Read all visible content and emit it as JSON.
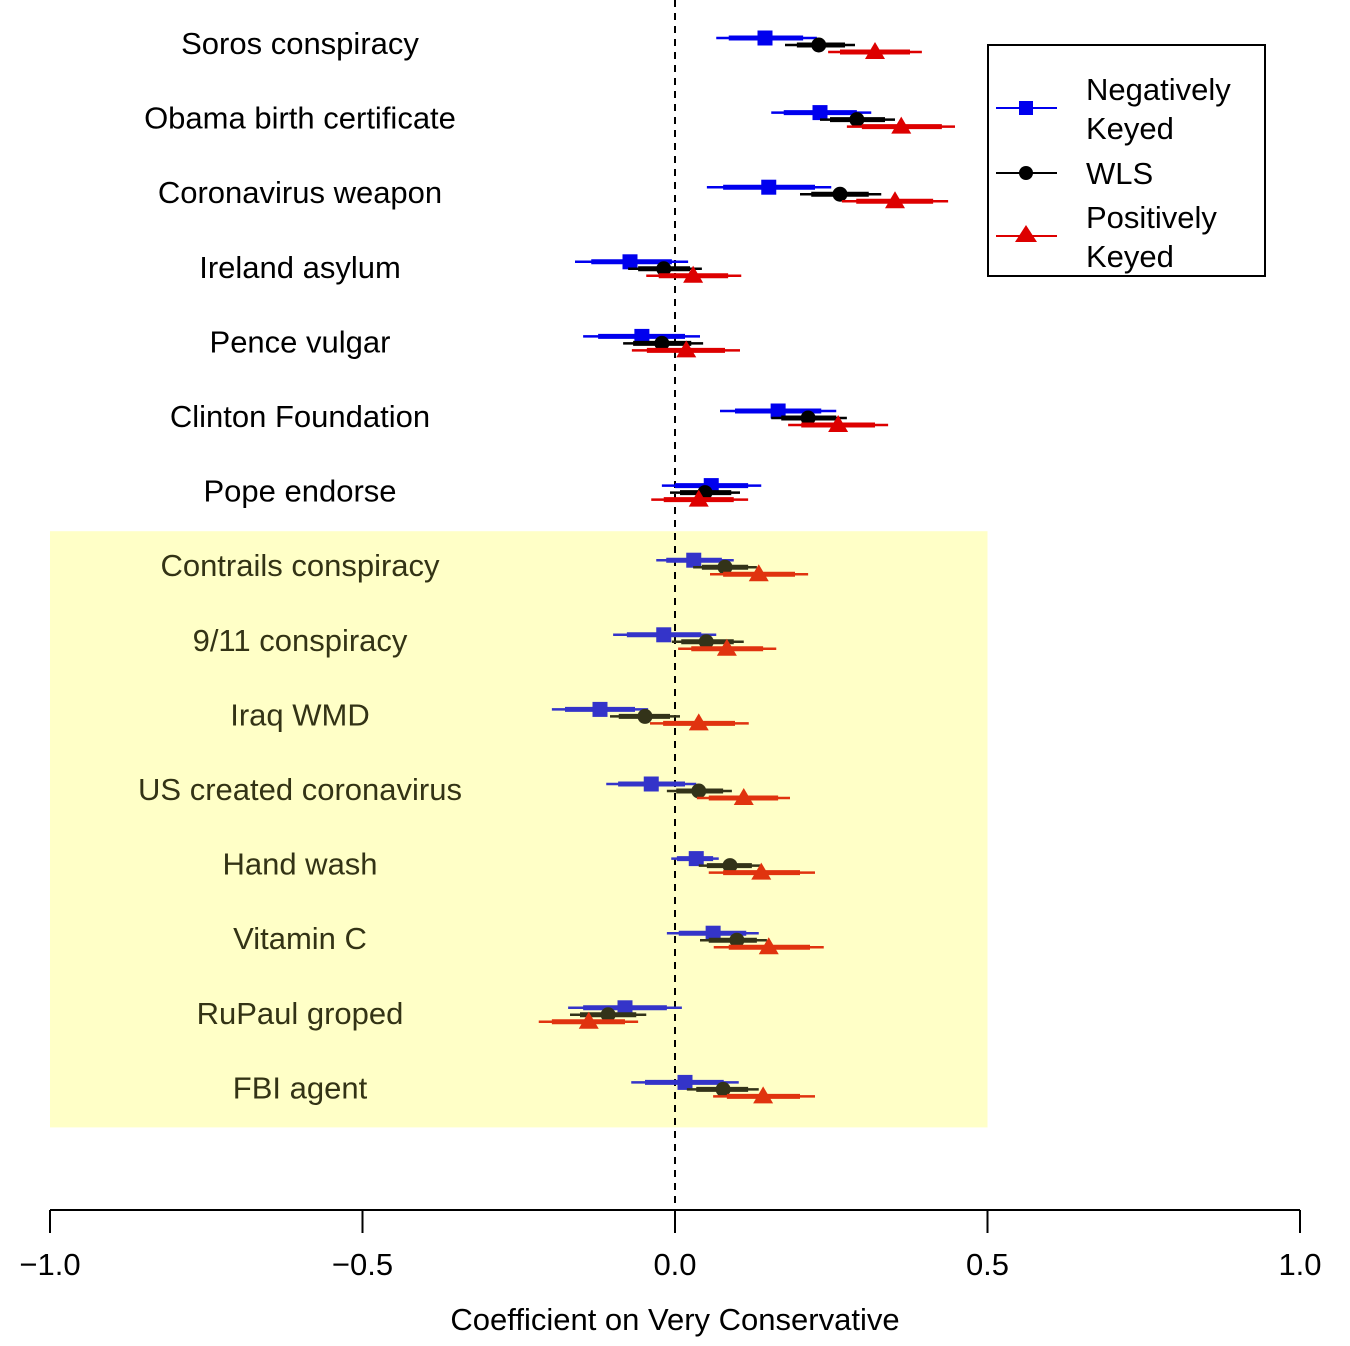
{
  "chart_data": {
    "type": "scatter",
    "subtype": "coefficient-plot",
    "title": "",
    "xlabel": "Coefficient on Very Conservative",
    "ylabel": "",
    "xlim": [
      -1.0,
      1.0
    ],
    "x_ticks": [
      -1.0,
      -0.5,
      0.0,
      0.5,
      1.0
    ],
    "x_tick_labels": [
      "−1.0",
      "−0.5",
      "0.0",
      "0.5",
      "1.0"
    ],
    "reference_line": 0.0,
    "grid": false,
    "legend_position": "top-right",
    "shaded_region": {
      "x_range": [
        -1.0,
        0.5
      ],
      "first_item": "Contrails conspiracy",
      "last_item": "FBI agent",
      "color": "#ffffd4"
    },
    "series": [
      {
        "name": "Negatively Keyed",
        "legend_label": [
          "Negatively",
          " Keyed"
        ],
        "color": "#0000ee",
        "marker": "square"
      },
      {
        "name": "WLS",
        "legend_label": [
          "WLS"
        ],
        "color": "#000000",
        "marker": "circle"
      },
      {
        "name": "Positively Keyed",
        "legend_label": [
          "Positively",
          " Keyed"
        ],
        "color": "#dd0000",
        "marker": "triangle"
      }
    ],
    "items": [
      {
        "label": "Soros conspiracy",
        "shaded": false,
        "est": [
          {
            "point": 0.144,
            "ci95": [
              0.066,
              0.227
            ],
            "ci_inner": [
              0.086,
              0.205
            ]
          },
          {
            "point": 0.23,
            "ci95": [
              0.176,
              0.288
            ],
            "ci_inner": [
              0.195,
              0.272
            ]
          },
          {
            "point": 0.32,
            "ci95": [
              0.245,
              0.395
            ],
            "ci_inner": [
              0.264,
              0.376
            ]
          }
        ]
      },
      {
        "label": "Obama birth certificate",
        "shaded": false,
        "est": [
          {
            "point": 0.232,
            "ci95": [
              0.154,
              0.314
            ],
            "ci_inner": [
              0.174,
              0.291
            ]
          },
          {
            "point": 0.291,
            "ci95": [
              0.232,
              0.352
            ],
            "ci_inner": [
              0.248,
              0.336
            ]
          },
          {
            "point": 0.362,
            "ci95": [
              0.275,
              0.448
            ],
            "ci_inner": [
              0.299,
              0.427
            ]
          }
        ]
      },
      {
        "label": "Coronavirus weapon",
        "shaded": false,
        "est": [
          {
            "point": 0.15,
            "ci95": [
              0.051,
              0.25
            ],
            "ci_inner": [
              0.077,
              0.224
            ]
          },
          {
            "point": 0.264,
            "ci95": [
              0.2,
              0.33
            ],
            "ci_inner": [
              0.218,
              0.31
            ]
          },
          {
            "point": 0.352,
            "ci95": [
              0.267,
              0.437
            ],
            "ci_inner": [
              0.29,
              0.413
            ]
          }
        ]
      },
      {
        "label": "Ireland asylum",
        "shaded": false,
        "est": [
          {
            "point": -0.072,
            "ci95": [
              -0.16,
              0.021
            ],
            "ci_inner": [
              -0.134,
              -0.005
            ]
          },
          {
            "point": -0.018,
            "ci95": [
              -0.075,
              0.043
            ],
            "ci_inner": [
              -0.059,
              0.024
            ]
          },
          {
            "point": 0.029,
            "ci95": [
              -0.046,
              0.106
            ],
            "ci_inner": [
              -0.026,
              0.085
            ]
          }
        ]
      },
      {
        "label": "Pence vulgar",
        "shaded": false,
        "est": [
          {
            "point": -0.053,
            "ci95": [
              -0.147,
              0.04
            ],
            "ci_inner": [
              -0.123,
              0.016
            ]
          },
          {
            "point": -0.021,
            "ci95": [
              -0.083,
              0.045
            ],
            "ci_inner": [
              -0.067,
              0.026
            ]
          },
          {
            "point": 0.018,
            "ci95": [
              -0.069,
              0.104
            ],
            "ci_inner": [
              -0.045,
              0.08
            ]
          }
        ]
      },
      {
        "label": "Clinton Foundation",
        "shaded": false,
        "est": [
          {
            "point": 0.165,
            "ci95": [
              0.072,
              0.258
            ],
            "ci_inner": [
              0.096,
              0.234
            ]
          },
          {
            "point": 0.213,
            "ci95": [
              0.154,
              0.275
            ],
            "ci_inner": [
              0.17,
              0.258
            ]
          },
          {
            "point": 0.261,
            "ci95": [
              0.181,
              0.341
            ],
            "ci_inner": [
              0.202,
              0.32
            ]
          }
        ]
      },
      {
        "label": "Pope endorse",
        "shaded": false,
        "est": [
          {
            "point": 0.058,
            "ci95": [
              -0.021,
              0.138
            ],
            "ci_inner": [
              0.0,
              0.117
            ]
          },
          {
            "point": 0.048,
            "ci95": [
              -0.008,
              0.104
            ],
            "ci_inner": [
              0.008,
              0.09
            ]
          },
          {
            "point": 0.038,
            "ci95": [
              -0.038,
              0.117
            ],
            "ci_inner": [
              -0.018,
              0.094
            ]
          }
        ]
      },
      {
        "label": "Contrails conspiracy",
        "shaded": true,
        "est": [
          {
            "point": 0.03,
            "ci95": [
              -0.03,
              0.094
            ],
            "ci_inner": [
              -0.014,
              0.075
            ]
          },
          {
            "point": 0.08,
            "ci95": [
              0.029,
              0.131
            ],
            "ci_inner": [
              0.043,
              0.117
            ]
          },
          {
            "point": 0.134,
            "ci95": [
              0.056,
              0.213
            ],
            "ci_inner": [
              0.077,
              0.192
            ]
          }
        ]
      },
      {
        "label": "9/11 conspiracy",
        "shaded": true,
        "est": [
          {
            "point": -0.018,
            "ci95": [
              -0.099,
              0.066
            ],
            "ci_inner": [
              -0.077,
              0.042
            ]
          },
          {
            "point": 0.05,
            "ci95": [
              -0.005,
              0.11
            ],
            "ci_inner": [
              0.01,
              0.094
            ]
          },
          {
            "point": 0.083,
            "ci95": [
              0.005,
              0.162
            ],
            "ci_inner": [
              0.026,
              0.141
            ]
          }
        ]
      },
      {
        "label": "Iraq WMD",
        "shaded": true,
        "est": [
          {
            "point": -0.12,
            "ci95": [
              -0.197,
              -0.043
            ],
            "ci_inner": [
              -0.176,
              -0.064
            ]
          },
          {
            "point": -0.048,
            "ci95": [
              -0.104,
              0.008
            ],
            "ci_inner": [
              -0.09,
              -0.008
            ]
          },
          {
            "point": 0.038,
            "ci95": [
              -0.04,
              0.118
            ],
            "ci_inner": [
              -0.019,
              0.096
            ]
          }
        ]
      },
      {
        "label": "US created coronavirus",
        "shaded": true,
        "est": [
          {
            "point": -0.038,
            "ci95": [
              -0.11,
              0.034
            ],
            "ci_inner": [
              -0.091,
              0.016
            ]
          },
          {
            "point": 0.038,
            "ci95": [
              -0.013,
              0.091
            ],
            "ci_inner": [
              0.002,
              0.077
            ]
          },
          {
            "point": 0.11,
            "ci95": [
              0.035,
              0.184
            ],
            "ci_inner": [
              0.054,
              0.165
            ]
          }
        ]
      },
      {
        "label": "Hand wash",
        "shaded": true,
        "est": [
          {
            "point": 0.034,
            "ci95": [
              -0.006,
              0.07
            ],
            "ci_inner": [
              0.003,
              0.061
            ]
          },
          {
            "point": 0.088,
            "ci95": [
              0.038,
              0.136
            ],
            "ci_inner": [
              0.051,
              0.123
            ]
          },
          {
            "point": 0.138,
            "ci95": [
              0.054,
              0.224
            ],
            "ci_inner": [
              0.077,
              0.2
            ]
          }
        ]
      },
      {
        "label": "Vitamin C",
        "shaded": true,
        "est": [
          {
            "point": 0.061,
            "ci95": [
              -0.013,
              0.134
            ],
            "ci_inner": [
              0.006,
              0.114
            ]
          },
          {
            "point": 0.099,
            "ci95": [
              0.04,
              0.147
            ],
            "ci_inner": [
              0.054,
              0.131
            ]
          },
          {
            "point": 0.15,
            "ci95": [
              0.062,
              0.238
            ],
            "ci_inner": [
              0.086,
              0.216
            ]
          }
        ]
      },
      {
        "label": "RuPaul groped",
        "shaded": true,
        "est": [
          {
            "point": -0.08,
            "ci95": [
              -0.171,
              0.011
            ],
            "ci_inner": [
              -0.147,
              -0.013
            ]
          },
          {
            "point": -0.107,
            "ci95": [
              -0.168,
              -0.046
            ],
            "ci_inner": [
              -0.152,
              -0.062
            ]
          },
          {
            "point": -0.138,
            "ci95": [
              -0.218,
              -0.059
            ],
            "ci_inner": [
              -0.197,
              -0.08
            ]
          }
        ]
      },
      {
        "label": "FBI agent",
        "shaded": true,
        "est": [
          {
            "point": 0.016,
            "ci95": [
              -0.07,
              0.102
            ],
            "ci_inner": [
              -0.048,
              0.078
            ]
          },
          {
            "point": 0.077,
            "ci95": [
              0.019,
              0.134
            ],
            "ci_inner": [
              0.034,
              0.117
            ]
          },
          {
            "point": 0.141,
            "ci95": [
              0.061,
              0.224
            ],
            "ci_inner": [
              0.083,
              0.2
            ]
          }
        ]
      }
    ]
  }
}
